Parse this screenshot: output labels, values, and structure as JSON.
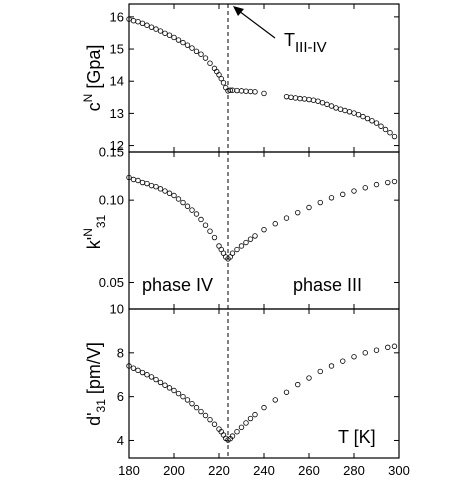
{
  "chart_data": [
    {
      "type": "scatter",
      "ylabel": "c^N [Gpa]",
      "ylabel_main": "c",
      "ylabel_sup": "N",
      "ylabel_rest": " [Gpa]",
      "ylim": [
        11.8,
        16.4
      ],
      "yticks": [
        12,
        13,
        14,
        15,
        16
      ],
      "yticklabels": [
        "12",
        "13",
        "14",
        "15",
        "16"
      ],
      "xlim": [
        180,
        300
      ],
      "series": [
        {
          "points": [
            [
              180,
              15.93
            ],
            [
              182,
              15.88
            ],
            [
              184,
              15.85
            ],
            [
              186,
              15.8
            ],
            [
              188,
              15.74
            ],
            [
              190,
              15.68
            ],
            [
              192,
              15.62
            ],
            [
              194,
              15.56
            ],
            [
              196,
              15.49
            ],
            [
              198,
              15.43
            ],
            [
              200,
              15.36
            ],
            [
              202,
              15.28
            ],
            [
              204,
              15.2
            ],
            [
              206,
              15.12
            ],
            [
              208,
              15.03
            ],
            [
              210,
              14.93
            ],
            [
              212,
              14.84
            ],
            [
              214,
              14.72
            ],
            [
              216,
              14.56
            ],
            [
              218,
              14.4
            ],
            [
              219,
              14.3
            ],
            [
              220,
              14.2
            ],
            [
              221,
              14.08
            ],
            [
              222,
              13.95
            ],
            [
              223,
              13.8
            ],
            [
              224,
              13.7
            ],
            [
              225,
              13.72
            ],
            [
              226,
              13.72
            ],
            [
              228,
              13.71
            ],
            [
              230,
              13.7
            ],
            [
              232,
              13.69
            ],
            [
              234,
              13.68
            ],
            [
              236,
              13.67
            ],
            [
              240,
              13.62
            ],
            [
              250,
              13.52
            ],
            [
              252,
              13.5
            ],
            [
              254,
              13.48
            ],
            [
              256,
              13.46
            ],
            [
              258,
              13.45
            ],
            [
              260,
              13.43
            ],
            [
              262,
              13.41
            ],
            [
              264,
              13.38
            ],
            [
              266,
              13.33
            ],
            [
              268,
              13.28
            ],
            [
              270,
              13.23
            ],
            [
              272,
              13.17
            ],
            [
              274,
              13.13
            ],
            [
              276,
              13.09
            ],
            [
              278,
              13.05
            ],
            [
              280,
              13.01
            ],
            [
              282,
              12.96
            ],
            [
              284,
              12.9
            ],
            [
              286,
              12.84
            ],
            [
              288,
              12.77
            ],
            [
              290,
              12.7
            ],
            [
              292,
              12.6
            ],
            [
              294,
              12.5
            ],
            [
              296,
              12.4
            ],
            [
              298,
              12.28
            ]
          ]
        }
      ],
      "annotations": [
        {
          "text": "T",
          "sub": "III-IV"
        }
      ]
    },
    {
      "type": "scatter",
      "ylabel": "k'^N_31",
      "ylabel_main": "k'",
      "ylabel_sup": "N",
      "ylabel_sub": "31",
      "ylim": [
        0.04,
        0.15
      ],
      "yscale": "log",
      "yticks": [
        0.05,
        0.1,
        0.15
      ],
      "yticklabels": [
        "0.05",
        "0.10",
        "0.15"
      ],
      "xlim": [
        180,
        300
      ],
      "series": [
        {
          "points": [
            [
              180,
              0.121
            ],
            [
              182,
              0.119
            ],
            [
              184,
              0.118
            ],
            [
              186,
              0.116
            ],
            [
              188,
              0.115
            ],
            [
              190,
              0.113
            ],
            [
              192,
              0.112
            ],
            [
              194,
              0.11
            ],
            [
              196,
              0.108
            ],
            [
              198,
              0.106
            ],
            [
              200,
              0.104
            ],
            [
              202,
              0.101
            ],
            [
              204,
              0.098
            ],
            [
              206,
              0.095
            ],
            [
              208,
              0.092
            ],
            [
              210,
              0.089
            ],
            [
              212,
              0.085
            ],
            [
              214,
              0.081
            ],
            [
              216,
              0.077
            ],
            [
              218,
              0.073
            ],
            [
              220,
              0.068
            ],
            [
              221,
              0.066
            ],
            [
              222,
              0.064
            ],
            [
              223,
              0.062
            ],
            [
              224,
              0.061
            ],
            [
              225,
              0.062
            ],
            [
              226,
              0.064
            ],
            [
              228,
              0.066
            ],
            [
              230,
              0.068
            ],
            [
              232,
              0.07
            ],
            [
              234,
              0.072
            ],
            [
              236,
              0.074
            ],
            [
              240,
              0.078
            ],
            [
              245,
              0.082
            ],
            [
              250,
              0.086
            ],
            [
              255,
              0.09
            ],
            [
              260,
              0.094
            ],
            [
              265,
              0.098
            ],
            [
              270,
              0.102
            ],
            [
              275,
              0.105
            ],
            [
              280,
              0.108
            ],
            [
              285,
              0.111
            ],
            [
              290,
              0.114
            ],
            [
              295,
              0.116
            ],
            [
              298,
              0.117
            ]
          ]
        }
      ],
      "annotations": [
        {
          "text": "phase IV"
        },
        {
          "text": "phase III"
        }
      ]
    },
    {
      "type": "scatter",
      "ylabel": "d'_31 [pm/V]",
      "ylabel_main": "d'",
      "ylabel_sub": "31",
      "ylabel_rest": " [pm/V]",
      "ylim": [
        3.2,
        10
      ],
      "yticks": [
        4,
        6,
        8,
        10
      ],
      "yticklabels": [
        "4",
        "6",
        "8",
        "10"
      ],
      "xlabel": "T [K]",
      "xlim": [
        180,
        300
      ],
      "xticks": [
        180,
        200,
        220,
        240,
        260,
        280,
        300
      ],
      "xticklabels": [
        "180",
        "200",
        "220",
        "240",
        "260",
        "280",
        "300"
      ],
      "series": [
        {
          "points": [
            [
              180,
              7.4
            ],
            [
              182,
              7.3
            ],
            [
              184,
              7.2
            ],
            [
              186,
              7.1
            ],
            [
              188,
              7.0
            ],
            [
              190,
              6.9
            ],
            [
              192,
              6.78
            ],
            [
              194,
              6.65
            ],
            [
              196,
              6.52
            ],
            [
              198,
              6.4
            ],
            [
              200,
              6.28
            ],
            [
              202,
              6.14
            ],
            [
              204,
              6.0
            ],
            [
              206,
              5.85
            ],
            [
              208,
              5.68
            ],
            [
              210,
              5.5
            ],
            [
              212,
              5.32
            ],
            [
              214,
              5.14
            ],
            [
              216,
              4.95
            ],
            [
              218,
              4.74
            ],
            [
              220,
              4.52
            ],
            [
              221,
              4.4
            ],
            [
              222,
              4.25
            ],
            [
              223,
              4.1
            ],
            [
              224,
              4.02
            ],
            [
              225,
              4.08
            ],
            [
              226,
              4.2
            ],
            [
              228,
              4.4
            ],
            [
              230,
              4.6
            ],
            [
              232,
              4.8
            ],
            [
              234,
              5.0
            ],
            [
              236,
              5.18
            ],
            [
              240,
              5.5
            ],
            [
              245,
              5.85
            ],
            [
              250,
              6.2
            ],
            [
              255,
              6.55
            ],
            [
              260,
              6.85
            ],
            [
              265,
              7.15
            ],
            [
              270,
              7.4
            ],
            [
              275,
              7.62
            ],
            [
              280,
              7.82
            ],
            [
              285,
              8.0
            ],
            [
              290,
              8.12
            ],
            [
              295,
              8.25
            ],
            [
              298,
              8.3
            ]
          ]
        }
      ],
      "annotations": [
        {
          "text": "T [K]"
        }
      ]
    }
  ],
  "transition": {
    "x": 224
  }
}
